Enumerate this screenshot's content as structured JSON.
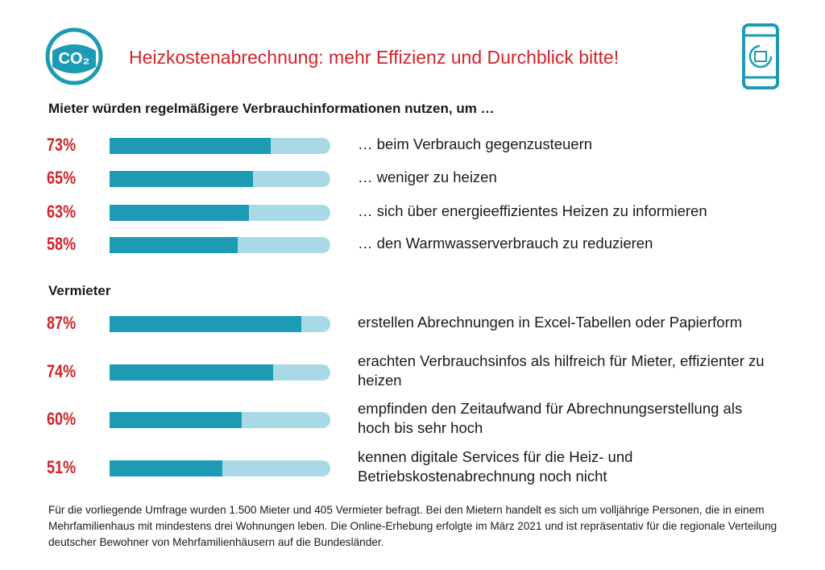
{
  "header": {
    "title": "Heizkostenabrechnung: mehr Effizienz und Durchblick bitte!",
    "logo": "CO₂"
  },
  "chart_data": [
    {
      "type": "bar",
      "title": "Mieter würden regelmäßigere Verbrauchinformationen nutzen, um …",
      "categories": [
        "… beim Verbrauch gegenzusteuern",
        "… weniger zu heizen",
        "… sich über energieeffizientes Heizen zu informieren",
        "… den Warmwasserverbrauch zu reduzieren"
      ],
      "values": [
        73,
        65,
        63,
        58
      ],
      "value_labels": [
        "73%",
        "65%",
        "63%",
        "58%"
      ],
      "xlim": [
        0,
        100
      ],
      "color": "#1d9bb4",
      "track_color": "#a9d9e5",
      "label_color": "#d2232a"
    },
    {
      "type": "bar",
      "title": "Vermieter",
      "categories": [
        "erstellen Abrechnungen in Excel-Tabellen oder Papierform",
        "erachten Verbrauchsinfos als hilfreich für Mieter, effizienter zu heizen",
        "empfinden den Zeitaufwand für Abrechnungserstellung als hoch bis sehr hoch",
        "kennen digitale Services für die Heiz- und Betriebskostenabrechnung noch nicht"
      ],
      "values": [
        87,
        74,
        60,
        51
      ],
      "value_labels": [
        "87%",
        "74%",
        "60%",
        "51%"
      ],
      "xlim": [
        0,
        100
      ],
      "color": "#1d9bb4",
      "track_color": "#a9d9e5",
      "label_color": "#d2232a"
    }
  ],
  "footnote": "Für die vorliegende Umfrage wurden 1.500 Mieter und 405 Vermieter befragt. Bei den Mietern handelt es sich um volljährige Personen, die in einem Mehrfamilienhaus mit mindestens drei Wohnungen leben. Die Online-Erhebung erfolgte im März 2021 und ist repräsentativ für die regionale Verteilung deutscher Bewohner von Mehrfamilienhäusern auf die Bundesländer."
}
